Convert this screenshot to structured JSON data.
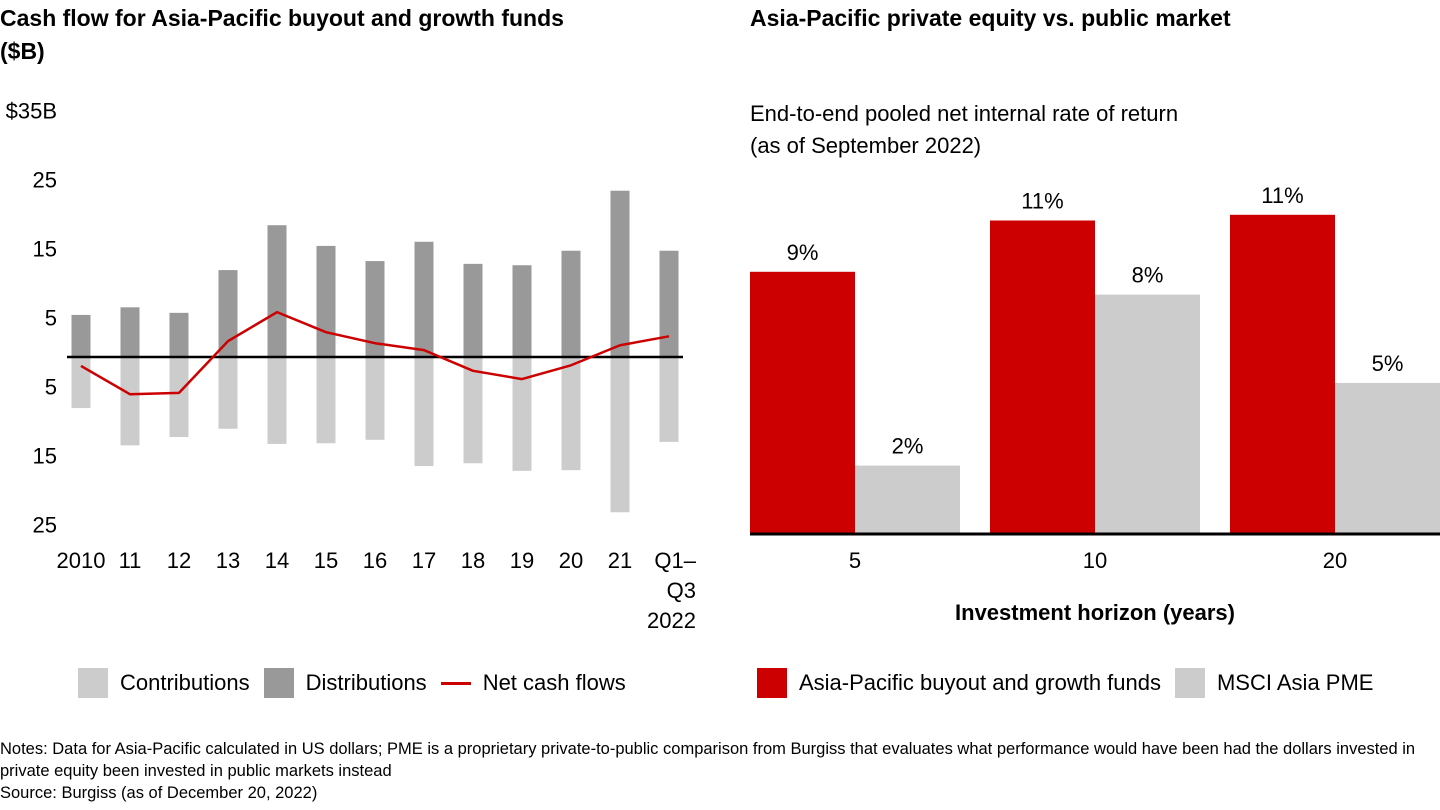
{
  "left": {
    "title": "Cash flow for Asia-Pacific buyout and growth funds ($B)",
    "legend": [
      {
        "label": "Contributions",
        "color": "#cccccc",
        "kind": "box"
      },
      {
        "label": "Distributions",
        "color": "#999999",
        "kind": "box"
      },
      {
        "label": "Net cash flows",
        "color": "#cc0000",
        "kind": "line"
      }
    ]
  },
  "right": {
    "title": "Asia-Pacific private equity vs. public market",
    "subtitle_line1": "End-to-end pooled net internal rate of return",
    "subtitle_line2": "(as of September 2022)",
    "legend": [
      {
        "label": "Asia-Pacific buyout and growth funds",
        "color": "#cc0000"
      },
      {
        "label": "MSCI Asia PME",
        "color": "#cccccc"
      }
    ]
  },
  "notes": {
    "line1": "Notes: Data for Asia-Pacific calculated in US dollars; PME is a proprietary private-to-public comparison from Burgiss that evaluates what performance would have been had the dollars invested in private equity been invested in public markets instead",
    "source": "Source: Burgiss (as of December 20, 2022)"
  },
  "chart_data": [
    {
      "type": "bar",
      "title": "Cash flow for Asia-Pacific buyout and growth funds ($B)",
      "xlabel": "",
      "ylabel": "$B",
      "ylim": [
        -25,
        35
      ],
      "y_ticks": [
        {
          "value": 35,
          "label": "$35B"
        },
        {
          "value": 25,
          "label": "25"
        },
        {
          "value": 15,
          "label": "15"
        },
        {
          "value": 5,
          "label": "5"
        },
        {
          "value": -5,
          "label": "5"
        },
        {
          "value": -15,
          "label": "15"
        },
        {
          "value": -25,
          "label": "25"
        }
      ],
      "categories": [
        "2010",
        "11",
        "12",
        "13",
        "14",
        "15",
        "16",
        "17",
        "18",
        "19",
        "20",
        "21",
        "Q1–\nQ3\n2022"
      ],
      "series": [
        {
          "name": "Distributions",
          "kind": "bar",
          "color": "#999999",
          "values": [
            6.1,
            7.2,
            6.4,
            12.6,
            19.1,
            16.1,
            13.9,
            16.7,
            13.5,
            13.3,
            15.4,
            24.1,
            15.4
          ]
        },
        {
          "name": "Contributions",
          "kind": "bar",
          "color": "#cccccc",
          "values": [
            -7.4,
            -12.8,
            -11.6,
            -10.4,
            -12.6,
            -12.5,
            -12.0,
            -15.8,
            -15.4,
            -16.5,
            -16.4,
            -22.5,
            -12.3
          ]
        },
        {
          "name": "Net cash flows",
          "kind": "line",
          "color": "#cc0000",
          "values": [
            -1.3,
            -5.4,
            -5.2,
            2.3,
            6.5,
            3.6,
            2.0,
            1.0,
            -2.0,
            -3.2,
            -1.2,
            1.7,
            3.0
          ]
        }
      ],
      "grid": false,
      "legend_position": "bottom"
    },
    {
      "type": "bar",
      "title": "Asia-Pacific private equity vs. public market",
      "subtitle": "End-to-end pooled net internal rate of return (as of September 2022)",
      "xlabel": "Investment horizon (years)",
      "ylabel": "",
      "ylim": [
        0,
        12
      ],
      "categories": [
        "5",
        "10",
        "20"
      ],
      "series": [
        {
          "name": "Asia-Pacific buyout and growth funds",
          "color": "#cc0000",
          "values": [
            9.2,
            11.0,
            11.2
          ],
          "labels": [
            "9%",
            "11%",
            "11%"
          ]
        },
        {
          "name": "MSCI Asia PME",
          "color": "#cccccc",
          "values": [
            2.4,
            8.4,
            5.3
          ],
          "labels": [
            "2%",
            "8%",
            "5%"
          ]
        }
      ],
      "grid": false,
      "legend_position": "bottom"
    }
  ]
}
